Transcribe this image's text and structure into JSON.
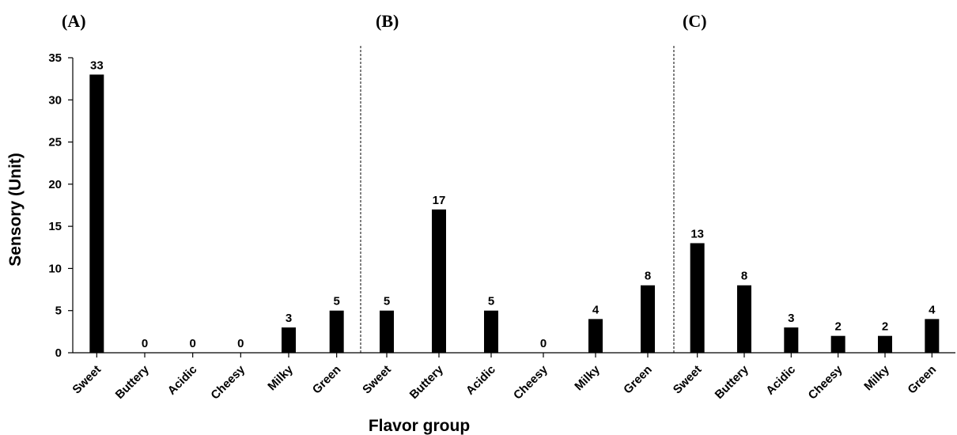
{
  "chart_data": {
    "type": "bar",
    "xlabel": "Flavor group",
    "ylabel": "Sensory  (Unit)",
    "ylim": [
      0,
      35
    ],
    "yticks": [
      0,
      5,
      10,
      15,
      20,
      25,
      30,
      35
    ],
    "bar_color": "#000000",
    "grid": false,
    "panels": [
      {
        "label": "(A)",
        "categories": [
          "Sweet",
          "Buttery",
          "Acidic",
          "Cheesy",
          "Milky",
          "Green"
        ],
        "values": [
          33,
          0,
          0,
          0,
          3,
          5
        ]
      },
      {
        "label": "(B)",
        "categories": [
          "Sweet",
          "Buttery",
          "Acidic",
          "Cheesy",
          "Milky",
          "Green"
        ],
        "values": [
          5,
          17,
          5,
          0,
          4,
          8
        ]
      },
      {
        "label": "(C)",
        "categories": [
          "Sweet",
          "Buttery",
          "Acidic",
          "Cheesy",
          "Milky",
          "Green"
        ],
        "values": [
          13,
          8,
          3,
          2,
          2,
          4
        ]
      }
    ]
  }
}
